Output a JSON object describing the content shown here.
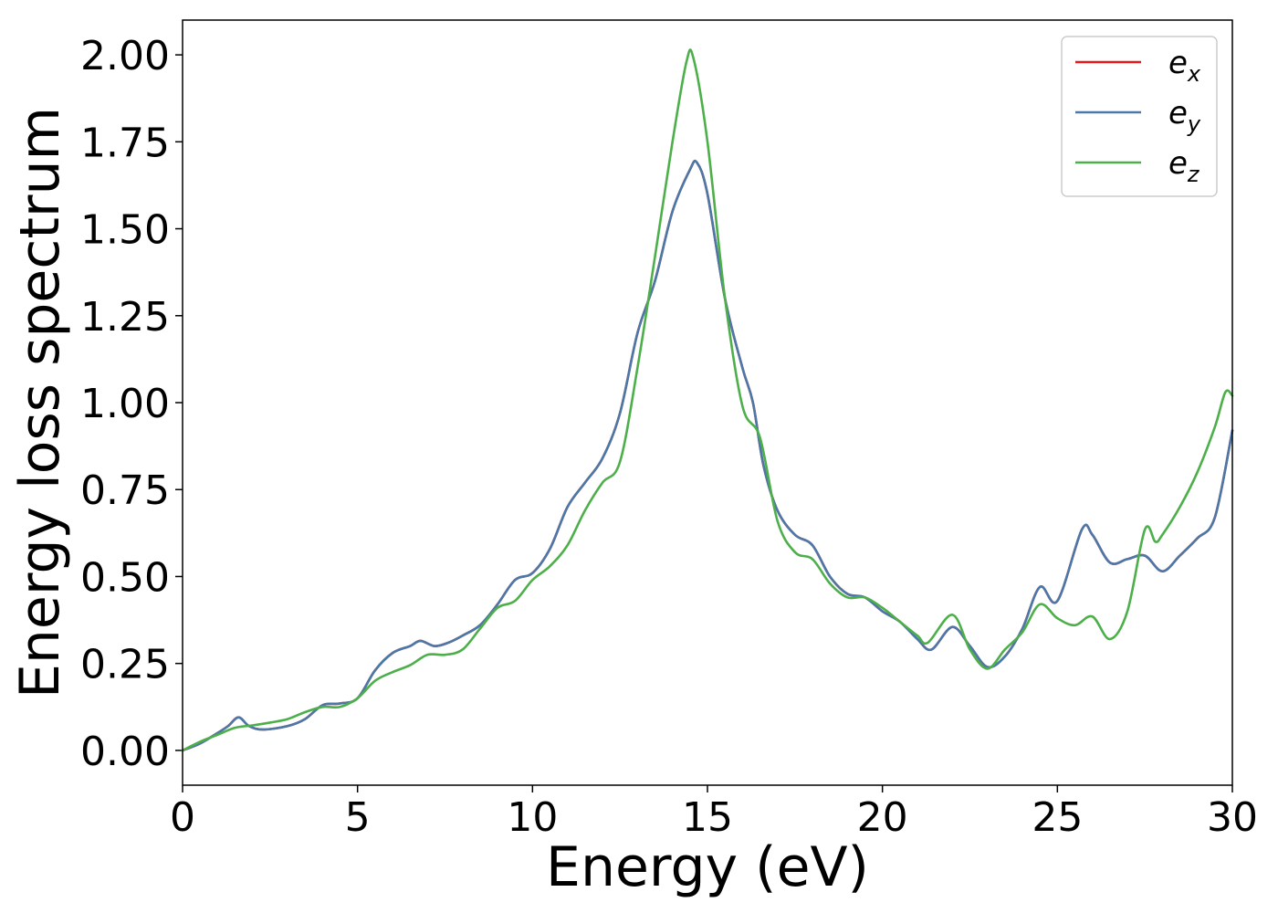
{
  "chart_data": {
    "type": "line",
    "title": "",
    "xlabel": "Energy (eV)",
    "ylabel": "Energy loss spectrum",
    "xlim": [
      0,
      30
    ],
    "ylim": [
      -0.1,
      2.1
    ],
    "xticks": [
      0,
      5,
      10,
      15,
      20,
      25,
      30
    ],
    "xtick_labels": [
      "0",
      "5",
      "10",
      "15",
      "20",
      "25",
      "30"
    ],
    "yticks": [
      0,
      0.25,
      0.5,
      0.75,
      1.0,
      1.25,
      1.5,
      1.75,
      2.0
    ],
    "ytick_labels": [
      "0.00",
      "0.25",
      "0.50",
      "0.75",
      "1.00",
      "1.25",
      "1.50",
      "1.75",
      "2.00"
    ],
    "grid": false,
    "legend_position": "top-right",
    "series": [
      {
        "name": "e",
        "subscript": "x",
        "color": "#e41a1c",
        "x": [
          0,
          0.5,
          1,
          1.3,
          1.6,
          1.9,
          2.3,
          3,
          3.5,
          4,
          4.5,
          5,
          5.5,
          6,
          6.5,
          6.8,
          7.2,
          7.6,
          8,
          8.5,
          9,
          9.5,
          10,
          10.5,
          11,
          11.5,
          12,
          12.5,
          13,
          13.5,
          14,
          14.5,
          14.7,
          15,
          15.5,
          16,
          16.3,
          16.6,
          17,
          17.5,
          18,
          18.5,
          19,
          19.5,
          20,
          20.5,
          21,
          21.4,
          22,
          22.5,
          23,
          23.5,
          24,
          24.5,
          25,
          25.7,
          26,
          26.5,
          27,
          27.5,
          28,
          28.5,
          29,
          29.5,
          30
        ],
        "y": [
          0.0,
          0.02,
          0.05,
          0.07,
          0.095,
          0.07,
          0.06,
          0.07,
          0.09,
          0.13,
          0.135,
          0.15,
          0.23,
          0.28,
          0.3,
          0.315,
          0.3,
          0.31,
          0.33,
          0.36,
          0.42,
          0.49,
          0.51,
          0.58,
          0.7,
          0.77,
          0.84,
          0.97,
          1.2,
          1.35,
          1.55,
          1.67,
          1.69,
          1.6,
          1.3,
          1.1,
          1.0,
          0.82,
          0.69,
          0.62,
          0.59,
          0.5,
          0.45,
          0.44,
          0.4,
          0.37,
          0.32,
          0.29,
          0.355,
          0.3,
          0.24,
          0.27,
          0.35,
          0.47,
          0.43,
          0.635,
          0.62,
          0.54,
          0.55,
          0.56,
          0.515,
          0.56,
          0.61,
          0.67,
          0.92
        ]
      },
      {
        "name": "e",
        "subscript": "y",
        "color": "#4a78a8",
        "x": [
          0,
          0.5,
          1,
          1.3,
          1.6,
          1.9,
          2.3,
          3,
          3.5,
          4,
          4.5,
          5,
          5.5,
          6,
          6.5,
          6.8,
          7.2,
          7.6,
          8,
          8.5,
          9,
          9.5,
          10,
          10.5,
          11,
          11.5,
          12,
          12.5,
          13,
          13.5,
          14,
          14.5,
          14.7,
          15,
          15.5,
          16,
          16.3,
          16.6,
          17,
          17.5,
          18,
          18.5,
          19,
          19.5,
          20,
          20.5,
          21,
          21.4,
          22,
          22.5,
          23,
          23.5,
          24,
          24.5,
          25,
          25.7,
          26,
          26.5,
          27,
          27.5,
          28,
          28.5,
          29,
          29.5,
          30
        ],
        "y": [
          0.0,
          0.02,
          0.05,
          0.07,
          0.095,
          0.07,
          0.06,
          0.07,
          0.09,
          0.13,
          0.135,
          0.15,
          0.23,
          0.28,
          0.3,
          0.315,
          0.3,
          0.31,
          0.33,
          0.36,
          0.42,
          0.49,
          0.51,
          0.58,
          0.7,
          0.77,
          0.84,
          0.97,
          1.2,
          1.35,
          1.55,
          1.67,
          1.69,
          1.6,
          1.3,
          1.1,
          1.0,
          0.82,
          0.69,
          0.62,
          0.59,
          0.5,
          0.45,
          0.44,
          0.4,
          0.37,
          0.32,
          0.29,
          0.355,
          0.3,
          0.24,
          0.27,
          0.35,
          0.47,
          0.43,
          0.635,
          0.62,
          0.54,
          0.55,
          0.56,
          0.515,
          0.56,
          0.61,
          0.67,
          0.92
        ]
      },
      {
        "name": "e",
        "subscript": "z",
        "color": "#4daf4a",
        "x": [
          0,
          0.5,
          1,
          1.5,
          2,
          2.5,
          3,
          3.5,
          4,
          4.5,
          5,
          5.5,
          6,
          6.5,
          7,
          7.5,
          8,
          8.5,
          9,
          9.5,
          10,
          10.5,
          11,
          11.5,
          12,
          12.5,
          13,
          13.5,
          14,
          14.4,
          14.6,
          15,
          15.5,
          16,
          16.5,
          17,
          17.5,
          18,
          18.5,
          19,
          19.5,
          20,
          20.5,
          21,
          21.3,
          22,
          22.5,
          23,
          23.5,
          24,
          24.5,
          25,
          25.5,
          26,
          26.5,
          27,
          27.5,
          27.8,
          28,
          28.5,
          29,
          29.5,
          29.8,
          30
        ],
        "y": [
          0.0,
          0.025,
          0.045,
          0.065,
          0.072,
          0.08,
          0.09,
          0.11,
          0.125,
          0.125,
          0.15,
          0.2,
          0.225,
          0.245,
          0.275,
          0.275,
          0.29,
          0.35,
          0.41,
          0.43,
          0.49,
          0.53,
          0.59,
          0.69,
          0.77,
          0.83,
          1.1,
          1.42,
          1.75,
          1.98,
          1.99,
          1.75,
          1.3,
          0.99,
          0.9,
          0.66,
          0.57,
          0.55,
          0.48,
          0.44,
          0.44,
          0.41,
          0.37,
          0.33,
          0.31,
          0.39,
          0.29,
          0.235,
          0.29,
          0.34,
          0.42,
          0.38,
          0.36,
          0.385,
          0.32,
          0.4,
          0.635,
          0.6,
          0.62,
          0.7,
          0.8,
          0.93,
          1.03,
          1.02
        ]
      }
    ]
  }
}
